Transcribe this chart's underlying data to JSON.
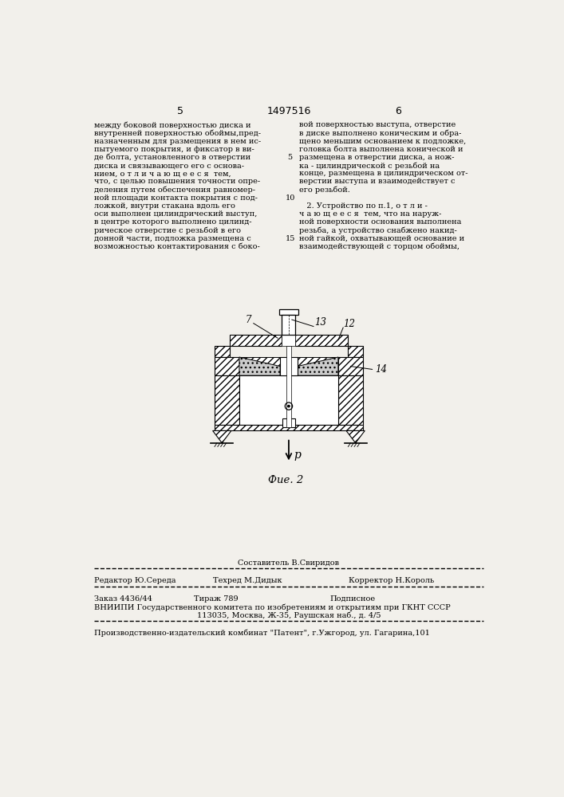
{
  "bg_color": "#f2f0eb",
  "header_number": "1497516",
  "page_left": "5",
  "page_right": "6",
  "left_col_text": [
    "между боковой поверхностью диска и",
    "внутренней поверхностью обоймы,пред-",
    "назначенным для размещения в нем ис-",
    "пытуемого покрытия, и фиксатор в ви-",
    "де болта, установленного в отверстии",
    "диска и связывающего его с основа-",
    "нием, о т л и ч а ю щ е е с я  тем,",
    "что, с целью повышения точности опре-",
    "деления путем обеспечения равномер-",
    "ной площади контакта покрытия с под-",
    "ложкой, внутри стакана вдоль его",
    "оси выполнен цилиндрический выступ,",
    "в центре которого выполнено цилинд-",
    "рическое отверстие с резьбой в его",
    "донной части, подложка размещена с",
    "возможностью контактирования с боко-"
  ],
  "right_col_text": [
    "вой поверхностью выступа, отверстие",
    "в диске выполнено коническим и обра-",
    "щено меньшим основанием к подложке,",
    "головка болта выполнена конической и",
    "размещена в отверстии диска, а нож-",
    "ка - цилиндрической с резьбой на",
    "конце, размещена в цилиндрическом от-",
    "верстии выступа и взаимодействует с",
    "его резьбой.",
    "",
    "   2. Устройство по п.1, о т л и -",
    "ч а ю щ е е с я  тем, что на наруж-",
    "ной поверхности основания выполнена",
    "резьба, а устройство снабжено накид-",
    "ной гайкой, охватывающей основание и",
    "взаимодействующей с торцом обоймы,"
  ],
  "footer_row1_center": "Составитель В.Свиридов",
  "footer_row2_left": "Редактор Ю.Середа",
  "footer_row2_mid": "Техред М.Дидык",
  "footer_row2_right": "Корректор Н.Король",
  "footer_row3_left": "Заказ 4436/44",
  "footer_row3_mid": "Тираж 789",
  "footer_row3_right": "Подписное",
  "footer_row4": "ВНИИПИ Государственного комитета по изобретениям и открытиям при ГКНТ СССР",
  "footer_row5": "113035, Москва, Ж-35, Раушская наб., д. 4/5",
  "footer_row6": "Производственно-издательский комбинат \"Патент\", г.Ужгород, ул. Гагарина,101",
  "fig_caption": "Фие. 2",
  "label_7": "7",
  "label_13": "13",
  "label_12": "12",
  "label_14": "14",
  "p_label": "p"
}
